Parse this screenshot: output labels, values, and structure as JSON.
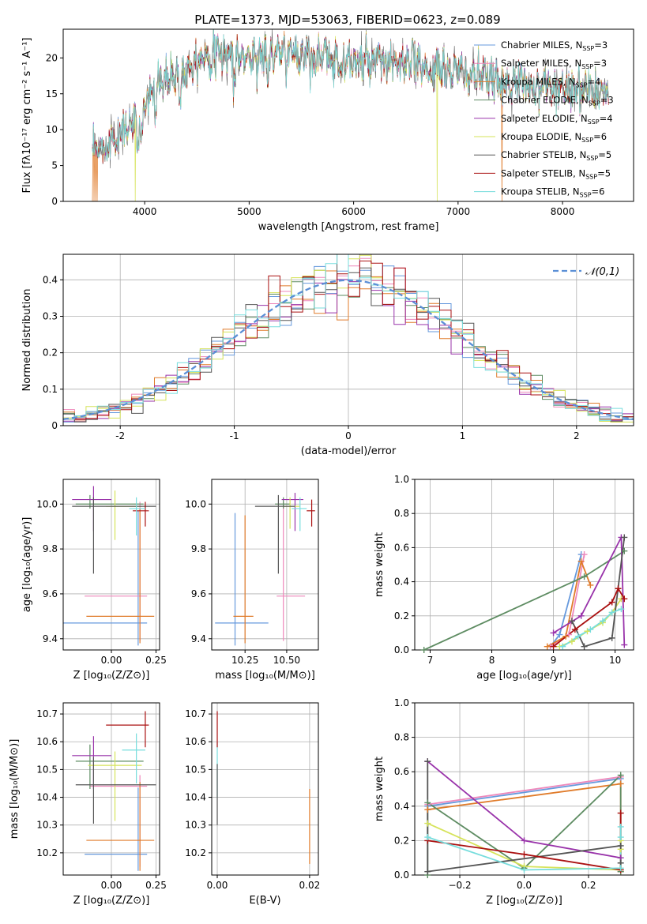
{
  "title": "PLATE=1373, MJD=53063, FIBERID=0623, z=0.089",
  "legend_entries": [
    {
      "label": "Chabrier MILES, N",
      "sub": "SSP",
      "tail": "=3",
      "color": "#6699dd"
    },
    {
      "label": "Salpeter MILES, N",
      "sub": "SSP",
      "tail": "=3",
      "color": "#ee88bb"
    },
    {
      "label": "Kroupa MILES, N",
      "sub": "SSP",
      "tail": "=4",
      "color": "#e07b2a"
    },
    {
      "label": "Chabrier ELODIE, N",
      "sub": "SSP",
      "tail": "=3",
      "color": "#5e8c62"
    },
    {
      "label": "Salpeter ELODIE, N",
      "sub": "SSP",
      "tail": "=4",
      "color": "#9933aa"
    },
    {
      "label": "Kroupa ELODIE, N",
      "sub": "SSP",
      "tail": "=6",
      "color": "#d6e35a"
    },
    {
      "label": "Chabrier STELIB, N",
      "sub": "SSP",
      "tail": "=5",
      "color": "#555555"
    },
    {
      "label": "Salpeter STELIB, N",
      "sub": "SSP",
      "tail": "=5",
      "color": "#aa1111"
    },
    {
      "label": "Kroupa STELIB, N",
      "sub": "SSP",
      "tail": "=6",
      "color": "#77dddd"
    }
  ],
  "chart_data": [
    {
      "type": "line",
      "name": "spectrum",
      "xlabel": "wavelength [Angstrom, rest frame]",
      "ylabel": "Flux [fλ10⁻¹⁷ erg cm⁻² s⁻¹ A⁻¹]",
      "xlim": [
        3220,
        8680
      ],
      "ylim": [
        0,
        24
      ],
      "xticks": [
        4000,
        5000,
        6000,
        7000,
        8000
      ],
      "yticks": [
        0,
        5,
        10,
        15,
        20
      ],
      "legend": "top-right",
      "continuum_x": [
        3500,
        3600,
        3700,
        3800,
        3900,
        4000,
        4100,
        4200,
        4300,
        4400,
        4500,
        4600,
        4800,
        5000,
        5200,
        5500,
        6000,
        6500,
        7000,
        7500,
        8000,
        8500
      ],
      "continuum_y": [
        6.5,
        7.5,
        9,
        10,
        11,
        13.5,
        15.5,
        17,
        17.5,
        18.5,
        20,
        20.5,
        20.5,
        20,
        20.5,
        20.5,
        19.5,
        19,
        18,
        16.5,
        16,
        15
      ],
      "data_range": [
        3500,
        8440
      ]
    },
    {
      "type": "histogram",
      "name": "residuals",
      "xlabel": "(data-model)/error",
      "ylabel": "Normed distribution",
      "xlim": [
        -2.5,
        2.5
      ],
      "ylim": [
        0,
        0.47
      ],
      "xticks": [
        -2,
        -1,
        0,
        1,
        2
      ],
      "yticks": [
        0,
        0.1,
        0.2,
        0.3,
        0.4
      ],
      "grid": true,
      "legend": "top-right",
      "reference_label": "𝒩(0,1)",
      "reference_color": "#5b8fd6",
      "bin_width": 0.1
    },
    {
      "type": "errorbar",
      "name": "age_vs_Z",
      "xlabel": "Z [log₁₀(Z/Z⊙)]",
      "ylabel": "age  [log₁₀(age/yr)]",
      "xlim": [
        -0.27,
        0.27
      ],
      "ylim": [
        9.35,
        10.11
      ],
      "xticks": [
        0.0,
        0.25
      ],
      "xticklabels": [
        "0.00",
        "0.25"
      ],
      "yticks": [
        9.4,
        9.6,
        9.8,
        10.0
      ],
      "yticklabels": [
        "9.4",
        "9.6",
        "9.8",
        "10.0"
      ],
      "grid": true,
      "points": [
        {
          "x": 0.15,
          "xerr": [
            0.42,
            0.05
          ],
          "y": 9.47,
          "yerr": [
            0.1,
            0.5
          ],
          "color": "#6699dd"
        },
        {
          "x": 0.16,
          "xerr": [
            0.31,
            0.04
          ],
          "y": 9.59,
          "yerr": [
            0.2,
            0.42
          ],
          "color": "#ee88bb"
        },
        {
          "x": 0.16,
          "xerr": [
            0.3,
            0.08
          ],
          "y": 9.5,
          "yerr": [
            0.12,
            0.48
          ],
          "color": "#e07b2a"
        },
        {
          "x": -0.12,
          "xerr": [
            0.08,
            0.3
          ],
          "y": 10.0,
          "yerr": [
            0.02,
            0.04
          ],
          "color": "#5e8c62"
        },
        {
          "x": -0.1,
          "xerr": [
            0.12,
            0.1
          ],
          "y": 10.02,
          "yerr": [
            0.14,
            0.06
          ],
          "color": "#9933aa"
        },
        {
          "x": 0.02,
          "xerr": [
            0.05,
            0.15
          ],
          "y": 9.99,
          "yerr": [
            0.15,
            0.07
          ],
          "color": "#d6e35a"
        },
        {
          "x": -0.1,
          "xerr": [
            0.12,
            0.35
          ],
          "y": 9.99,
          "yerr": [
            0.3,
            0.04
          ],
          "color": "#555555"
        },
        {
          "x": 0.19,
          "xerr": [
            0.07,
            0.02
          ],
          "y": 9.97,
          "yerr": [
            0.07,
            0.04
          ],
          "color": "#aa1111"
        },
        {
          "x": 0.14,
          "xerr": [
            0.04,
            0.05
          ],
          "y": 9.98,
          "yerr": [
            0.12,
            0.05
          ],
          "color": "#77dddd"
        }
      ]
    },
    {
      "type": "errorbar",
      "name": "age_vs_mass",
      "xlabel": "mass [log₁₀(M/M⊙)]",
      "ylabel": "",
      "xlim": [
        10.05,
        10.69
      ],
      "ylim": [
        9.35,
        10.11
      ],
      "xticks": [
        10.25,
        10.5
      ],
      "xticklabels": [
        "10.25",
        "10.50"
      ],
      "yticks": [
        9.4,
        9.6,
        9.8,
        10.0
      ],
      "yticklabels": [
        "9.4",
        "9.6",
        "9.8",
        "10.0"
      ],
      "grid": true,
      "points": [
        {
          "x": 10.19,
          "xerr": [
            0.12,
            0.2
          ],
          "y": 9.47,
          "yerr": [
            0.1,
            0.49
          ],
          "color": "#6699dd"
        },
        {
          "x": 10.48,
          "xerr": [
            0.04,
            0.13
          ],
          "y": 9.59,
          "yerr": [
            0.2,
            0.42
          ],
          "color": "#ee88bb"
        },
        {
          "x": 10.25,
          "xerr": [
            0.07,
            0.05
          ],
          "y": 9.5,
          "yerr": [
            0.12,
            0.45
          ],
          "color": "#e07b2a"
        },
        {
          "x": 10.48,
          "xerr": [
            0.05,
            0.04
          ],
          "y": 10.0,
          "yerr": [
            0.02,
            0.03
          ],
          "color": "#5e8c62"
        },
        {
          "x": 10.55,
          "xerr": [
            0.08,
            0.05
          ],
          "y": 10.02,
          "yerr": [
            0.14,
            0.03
          ],
          "color": "#9933aa"
        },
        {
          "x": 10.52,
          "xerr": [
            0.04,
            0.06
          ],
          "y": 9.99,
          "yerr": [
            0.1,
            0.04
          ],
          "color": "#d6e35a"
        },
        {
          "x": 10.45,
          "xerr": [
            0.14,
            0.1
          ],
          "y": 9.99,
          "yerr": [
            0.3,
            0.05
          ],
          "color": "#555555"
        },
        {
          "x": 10.65,
          "xerr": [
            0.03,
            0.02
          ],
          "y": 9.97,
          "yerr": [
            0.07,
            0.05
          ],
          "color": "#aa1111"
        },
        {
          "x": 10.58,
          "xerr": [
            0.05,
            0.04
          ],
          "y": 9.98,
          "yerr": [
            0.1,
            0.05
          ],
          "color": "#77dddd"
        }
      ]
    },
    {
      "type": "line",
      "name": "mass_weight_vs_age",
      "xlabel": "age  [log₁₀(age/yr)]",
      "ylabel": "mass weight",
      "xlim": [
        6.75,
        10.3
      ],
      "ylim": [
        0,
        1
      ],
      "xticks": [
        7,
        8,
        9,
        10
      ],
      "yticks": [
        0,
        0.2,
        0.4,
        0.6,
        0.8,
        1.0
      ],
      "yticklabels": [
        "0.0",
        "0.2",
        "0.4",
        "0.6",
        "0.8",
        "1.0"
      ],
      "grid": true,
      "series": [
        {
          "color": "#6699dd",
          "x": [
            8.95,
            9.1,
            9.45
          ],
          "y": [
            0.02,
            0.09,
            0.56
          ]
        },
        {
          "color": "#ee88bb",
          "x": [
            8.95,
            9.25,
            9.5
          ],
          "y": [
            0.02,
            0.09,
            0.56
          ]
        },
        {
          "color": "#e07b2a",
          "x": [
            8.9,
            9.2,
            9.45,
            9.6
          ],
          "y": [
            0.02,
            0.08,
            0.52,
            0.38
          ]
        },
        {
          "color": "#5e8c62",
          "x": [
            6.9,
            9.5,
            10.15
          ],
          "y": [
            0.0,
            0.43,
            0.58
          ]
        },
        {
          "color": "#9933aa",
          "x": [
            9.0,
            9.45,
            10.1,
            10.15
          ],
          "y": [
            0.1,
            0.2,
            0.66,
            0.03
          ]
        },
        {
          "color": "#d6e35a",
          "x": [
            9.1,
            9.3,
            9.55,
            9.8,
            9.95,
            10.1
          ],
          "y": [
            0.02,
            0.05,
            0.11,
            0.16,
            0.22,
            0.3
          ]
        },
        {
          "color": "#555555",
          "x": [
            9.3,
            9.5,
            9.95,
            10.15
          ],
          "y": [
            0.17,
            0.02,
            0.07,
            0.66
          ]
        },
        {
          "color": "#aa1111",
          "x": [
            9.0,
            9.35,
            9.95,
            10.05,
            10.15
          ],
          "y": [
            0.02,
            0.12,
            0.28,
            0.36,
            0.3
          ]
        },
        {
          "color": "#77dddd",
          "x": [
            9.15,
            9.4,
            9.6,
            9.8,
            9.95,
            10.1
          ],
          "y": [
            0.02,
            0.08,
            0.12,
            0.17,
            0.22,
            0.24
          ]
        }
      ]
    },
    {
      "type": "errorbar",
      "name": "mass_vs_Z",
      "xlabel": "Z [log₁₀(Z/Z⊙)]",
      "ylabel": "mass [log₁₀(M/M⊙)]",
      "xlim": [
        -0.27,
        0.27
      ],
      "ylim": [
        10.12,
        10.74
      ],
      "xticks": [
        0.0,
        0.25
      ],
      "xticklabels": [
        "0.00",
        "0.25"
      ],
      "yticks": [
        10.2,
        10.3,
        10.4,
        10.5,
        10.6,
        10.7
      ],
      "yticklabels": [
        "10.2",
        "10.3",
        "10.4",
        "10.5",
        "10.6",
        "10.7"
      ],
      "grid": true,
      "points": [
        {
          "x": 0.15,
          "xerr": [
            0.3,
            0.05
          ],
          "y": 10.195,
          "yerr": [
            0.06,
            0.24
          ],
          "color": "#6699dd"
        },
        {
          "x": 0.16,
          "xerr": [
            0.28,
            0.04
          ],
          "y": 10.44,
          "yerr": [
            0.29,
            0.04
          ],
          "color": "#ee88bb"
        },
        {
          "x": 0.16,
          "xerr": [
            0.3,
            0.08
          ],
          "y": 10.245,
          "yerr": [
            0.11,
            0.21
          ],
          "color": "#e07b2a"
        },
        {
          "x": -0.12,
          "xerr": [
            0.08,
            0.3
          ],
          "y": 10.53,
          "yerr": [
            0.1,
            0.06
          ],
          "color": "#5e8c62"
        },
        {
          "x": -0.1,
          "xerr": [
            0.12,
            0.1
          ],
          "y": 10.55,
          "yerr": [
            0.12,
            0.07
          ],
          "color": "#9933aa"
        },
        {
          "x": 0.02,
          "xerr": [
            0.15,
            0.15
          ],
          "y": 10.515,
          "yerr": [
            0.2,
            0.05
          ],
          "color": "#d6e35a"
        },
        {
          "x": -0.1,
          "xerr": [
            0.1,
            0.35
          ],
          "y": 10.445,
          "yerr": [
            0.14,
            0.1
          ],
          "color": "#555555"
        },
        {
          "x": 0.19,
          "xerr": [
            0.22,
            0.02
          ],
          "y": 10.66,
          "yerr": [
            0.08,
            0.05
          ],
          "color": "#aa1111"
        },
        {
          "x": 0.14,
          "xerr": [
            0.08,
            0.05
          ],
          "y": 10.57,
          "yerr": [
            0.12,
            0.06
          ],
          "color": "#77dddd"
        }
      ]
    },
    {
      "type": "errorbar",
      "name": "mass_vs_EBV",
      "xlabel": "E(B-V)",
      "ylabel": "",
      "xlim": [
        -0.0012,
        0.0219
      ],
      "ylim": [
        10.12,
        10.74
      ],
      "xticks": [
        0.0,
        0.02
      ],
      "xticklabels": [
        "0.00",
        "0.02"
      ],
      "yticks": [
        10.2,
        10.3,
        10.4,
        10.5,
        10.6,
        10.7
      ],
      "yticklabels": [
        "10.2",
        "10.3",
        "10.4",
        "10.5",
        "10.6",
        "10.7"
      ],
      "grid": true,
      "points": [
        {
          "x": 0.0,
          "y": 10.5,
          "yerr": [
            0.1,
            0.1
          ],
          "color": "#77dddd"
        },
        {
          "x": 0.0,
          "y": 10.42,
          "yerr": [
            0.12,
            0.1
          ],
          "color": "#555555"
        },
        {
          "x": 0.0,
          "y": 10.63,
          "yerr": [
            0.05,
            0.08
          ],
          "color": "#aa1111"
        },
        {
          "x": 0.02,
          "y": 10.3,
          "yerr": [
            0.14,
            0.13
          ],
          "color": "#e07b2a"
        }
      ]
    },
    {
      "type": "line",
      "name": "mass_weight_vs_Z",
      "xlabel": "Z [log₁₀(Z/Z⊙)]",
      "ylabel": "mass weight",
      "xlim": [
        -0.34,
        0.34
      ],
      "ylim": [
        0,
        1
      ],
      "xticks": [
        -0.2,
        0.0,
        0.2
      ],
      "xticklabels": [
        "−0.2",
        "0.0",
        "0.2"
      ],
      "yticks": [
        0,
        0.2,
        0.4,
        0.6,
        0.8,
        1.0
      ],
      "yticklabels": [
        "0.0",
        "0.2",
        "0.4",
        "0.6",
        "0.8",
        "1.0"
      ],
      "grid": true,
      "series": [
        {
          "color": "#6699dd",
          "x": [
            -0.3,
            0.3
          ],
          "y": [
            0.4,
            0.56
          ]
        },
        {
          "color": "#ee88bb",
          "x": [
            -0.3,
            0.3
          ],
          "y": [
            0.41,
            0.57
          ]
        },
        {
          "color": "#e07b2a",
          "x": [
            -0.3,
            0.3,
            0.3
          ],
          "y": [
            0.38,
            0.53,
            0.02
          ]
        },
        {
          "color": "#5e8c62",
          "x": [
            -0.3,
            -0.3,
            0.0,
            0.3,
            0.3
          ],
          "y": [
            0.0,
            0.42,
            0.04,
            0.58,
            0.02
          ]
        },
        {
          "color": "#9933aa",
          "x": [
            -0.3,
            0.0,
            0.3
          ],
          "y": [
            0.66,
            0.2,
            0.1
          ]
        },
        {
          "color": "#d6e35a",
          "x": [
            -0.3,
            0.0,
            0.3,
            0.3,
            0.3
          ],
          "y": [
            0.3,
            0.05,
            0.03,
            0.15,
            0.2
          ]
        },
        {
          "color": "#555555",
          "x": [
            -0.3,
            -0.3,
            0.3,
            0.3
          ],
          "y": [
            0.66,
            0.02,
            0.17,
            0.07
          ]
        },
        {
          "color": "#aa1111",
          "x": [
            -0.3,
            0.0,
            0.3,
            0.3
          ],
          "y": [
            0.2,
            0.12,
            0.03,
            0.36
          ]
        },
        {
          "color": "#77dddd",
          "x": [
            -0.3,
            0.0,
            0.3,
            0.3,
            0.3
          ],
          "y": [
            0.22,
            0.03,
            0.04,
            0.22,
            0.28
          ]
        }
      ]
    }
  ]
}
